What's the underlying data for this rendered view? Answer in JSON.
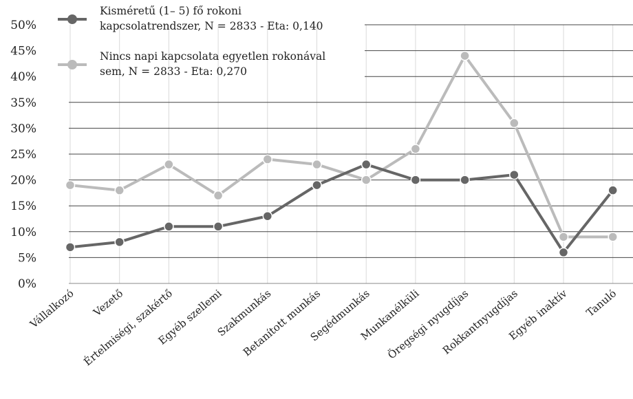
{
  "chart_data": {
    "type": "line",
    "categories": [
      "Vállalkozó",
      "Vezető",
      "Értelmiségi, szakértő",
      "Egyéb szellemi",
      "Szakmunkás",
      "Betanított munkás",
      "Segédmunkás",
      "Munkanélküli",
      "Öregségi nyugdíjas",
      "Rokkantnyugdíjas",
      "Egyéb inaktív",
      "Tanuló"
    ],
    "series": [
      {
        "name": "Kisméretű (1– 5) fő rokoni kapcsolatrendszer, N = 2833 - Eta: 0,140",
        "name_lines": [
          "Kisméretű (1– 5) fő rokoni",
          "kapcsolatrendszer, N = 2833 - Eta: 0,140"
        ],
        "color": "#666666",
        "values": [
          7,
          8,
          11,
          11,
          13,
          19,
          23,
          20,
          20,
          21,
          6,
          18
        ]
      },
      {
        "name": "Nincs napi kapcsolata egyetlen rokonával sem, N = 2833 - Eta: 0,270",
        "name_lines": [
          "Nincs napi kapcsolata egyetlen rokonával",
          "sem, N = 2833 - Eta: 0,270"
        ],
        "color": "#bbbbbb",
        "values": [
          19,
          18,
          23,
          17,
          24,
          23,
          20,
          26,
          44,
          31,
          9,
          9
        ]
      }
    ],
    "y_ticks": [
      "0%",
      "5%",
      "10%",
      "15%",
      "20%",
      "25%",
      "30%",
      "35%",
      "40%",
      "45%",
      "50%"
    ],
    "ylim": [
      0,
      50
    ],
    "y_step": 5,
    "grid": true,
    "legend": "top-left",
    "title": "",
    "xlabel": "",
    "ylabel": ""
  }
}
